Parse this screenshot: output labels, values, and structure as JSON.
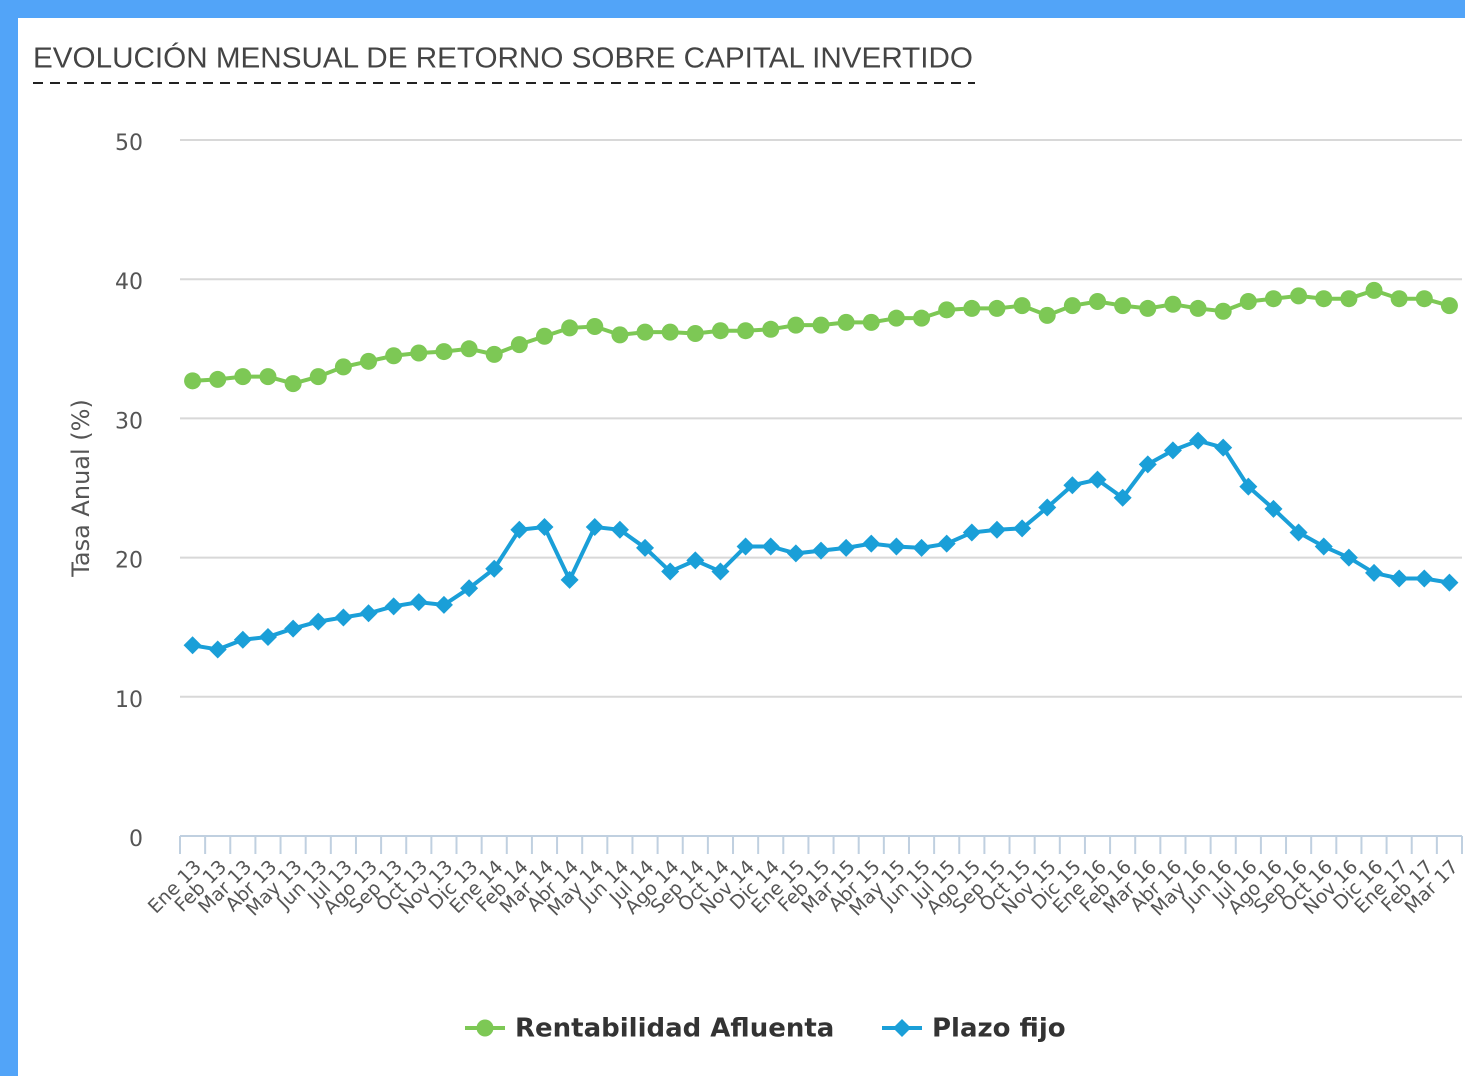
{
  "chart_data": {
    "type": "line",
    "title": "EVOLUCIÓN MENSUAL DE RETORNO SOBRE CAPITAL INVERTIDO",
    "y_label": "Tasa Anual (%)",
    "categories": [
      "Ene 13",
      "Feb 13",
      "Mar 13",
      "Abr 13",
      "May 13",
      "Jun 13",
      "Jul 13",
      "Ago 13",
      "Sep 13",
      "Oct 13",
      "Nov 13",
      "Dic 13",
      "Ene 14",
      "Feb 14",
      "Mar 14",
      "Abr 14",
      "May 14",
      "Jun 14",
      "Jul 14",
      "Ago 14",
      "Sep 14",
      "Oct 14",
      "Nov 14",
      "Dic 14",
      "Ene 15",
      "Feb 15",
      "Mar 15",
      "Abr 15",
      "May 15",
      "Jun 15",
      "Jul 15",
      "Ago 15",
      "Sep 15",
      "Oct 15",
      "Nov 15",
      "Dic 15",
      "Ene 16",
      "Feb 16",
      "Mar 16",
      "Abr 16",
      "May 16",
      "Jun 16",
      "Jul 16",
      "Ago 16",
      "Sep 16",
      "Oct 16",
      "Nov 16",
      "Dic 16",
      "Ene 17",
      "Feb 17",
      "Mar 17"
    ],
    "series": [
      {
        "name": "Rentabilidad Afluenta",
        "color": "#7dc855",
        "marker": "circle",
        "values": [
          32.7,
          32.8,
          33.0,
          33.0,
          32.5,
          33.0,
          33.7,
          34.1,
          34.5,
          34.7,
          34.8,
          35.0,
          34.6,
          35.3,
          35.9,
          36.5,
          36.6,
          36.0,
          36.2,
          36.2,
          36.1,
          36.3,
          36.3,
          36.4,
          36.7,
          36.7,
          36.9,
          36.9,
          37.2,
          37.2,
          37.8,
          37.9,
          37.9,
          38.1,
          37.4,
          38.1,
          38.4,
          38.1,
          37.9,
          38.2,
          37.9,
          37.7,
          38.4,
          38.6,
          38.8,
          38.6,
          38.6,
          39.2,
          38.6,
          38.6,
          38.1
        ]
      },
      {
        "name": "Plazo fijo",
        "color": "#1a9fd8",
        "marker": "diamond",
        "values": [
          13.7,
          13.4,
          14.1,
          14.3,
          14.9,
          15.4,
          15.7,
          16.0,
          16.5,
          16.8,
          16.6,
          17.8,
          19.2,
          22.0,
          22.2,
          18.4,
          22.2,
          22.0,
          20.7,
          19.0,
          19.8,
          19.0,
          20.8,
          20.8,
          20.3,
          20.5,
          20.7,
          21.0,
          20.8,
          20.7,
          21.0,
          21.8,
          22.0,
          22.1,
          23.6,
          25.2,
          25.6,
          24.3,
          26.7,
          27.7,
          28.4,
          27.9,
          25.1,
          23.5,
          21.8,
          20.8,
          20.0,
          18.9,
          18.5,
          18.5,
          18.2
        ]
      }
    ],
    "ylim": [
      0,
      50
    ],
    "yticks": [
      0,
      10,
      20,
      30,
      40,
      50
    ],
    "grid": true
  }
}
